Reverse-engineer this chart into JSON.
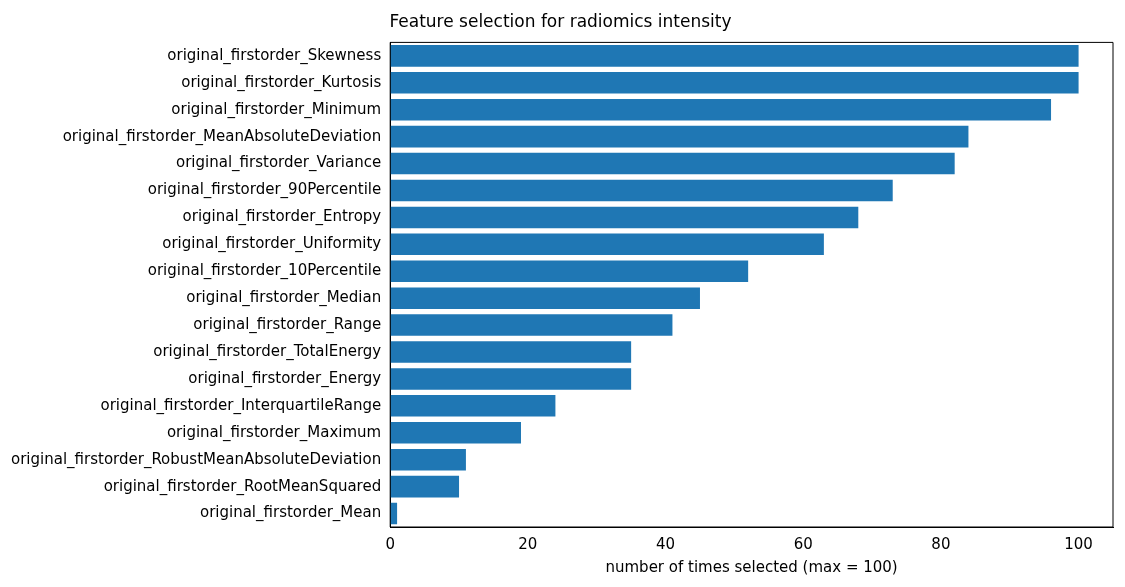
{
  "chart_data": {
    "type": "bar",
    "orientation": "horizontal",
    "title": "Feature selection for radiomics intensity",
    "xlabel": "number of times selected (max = 100)",
    "categories": [
      "original_firstorder_Skewness",
      "original_firstorder_Kurtosis",
      "original_firstorder_Minimum",
      "original_firstorder_MeanAbsoluteDeviation",
      "original_firstorder_Variance",
      "original_firstorder_90Percentile",
      "original_firstorder_Entropy",
      "original_firstorder_Uniformity",
      "original_firstorder_10Percentile",
      "original_firstorder_Median",
      "original_firstorder_Range",
      "original_firstorder_TotalEnergy",
      "original_firstorder_Energy",
      "original_firstorder_InterquartileRange",
      "original_firstorder_Maximum",
      "original_firstorder_RobustMeanAbsoluteDeviation",
      "original_firstorder_RootMeanSquared",
      "original_firstorder_Mean"
    ],
    "values": [
      100,
      100,
      96,
      84,
      82,
      73,
      68,
      63,
      52,
      45,
      41,
      35,
      35,
      24,
      19,
      11,
      10,
      1
    ],
    "color": "#1f77b4",
    "xlim": [
      0,
      105
    ],
    "xticks": [
      0,
      20,
      40,
      60,
      80,
      100
    ],
    "grid": false,
    "legend": false
  }
}
